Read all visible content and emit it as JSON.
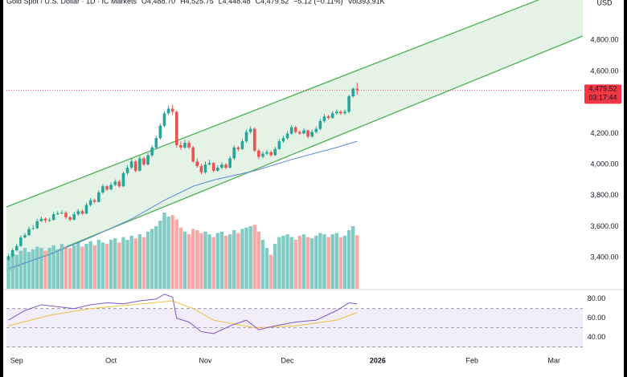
{
  "chart_data": {
    "type": "candlestick",
    "header": [
      "Gold Spot / U.S. Dollar · 1D · IC Markets",
      "O4,488.70",
      "H4,525.75",
      "L4,448.48",
      "C4,479.52",
      "−5.12 (−0.11%)",
      "Vol393.91K"
    ],
    "currency": "USD",
    "up_color": "#26a69a",
    "down_color": "#ef5350",
    "volume_up_color": "#80cbc4",
    "volume_down_color": "#f7a9a7",
    "open": [
      3390,
      3410,
      3448,
      3476,
      3530,
      3545,
      3585,
      3590,
      3635,
      3650,
      3640,
      3643,
      3680,
      3686,
      3690,
      3660,
      3645,
      3680,
      3700,
      3685,
      3740,
      3770,
      3760,
      3820,
      3860,
      3840,
      3870,
      3890,
      3860,
      3945,
      3980,
      4020,
      3960,
      4040,
      4000,
      4060,
      4110,
      4170,
      4250,
      4330,
      4360,
      4340,
      4125,
      4110,
      4140,
      4110,
      4020,
      3990,
      3950,
      4000,
      4010,
      3960,
      3980,
      4000,
      3980,
      4040,
      4110,
      4100,
      4150,
      4210,
      4230,
      4090,
      4050,
      4070,
      4080,
      4060,
      4100,
      4150,
      4170,
      4200,
      4240,
      4210,
      4200,
      4220,
      4180,
      4210,
      4230,
      4280,
      4310,
      4300,
      4330,
      4340,
      4330,
      4340,
      4440,
      4488.7
    ],
    "high": [
      3425,
      3460,
      3490,
      3545,
      3560,
      3600,
      3610,
      3650,
      3665,
      3660,
      3658,
      3695,
      3700,
      3705,
      3700,
      3668,
      3695,
      3715,
      3710,
      3755,
      3785,
      3780,
      3835,
      3875,
      3870,
      3885,
      3905,
      3900,
      3955,
      3995,
      4040,
      4030,
      4055,
      4050,
      4075,
      4125,
      4185,
      4265,
      4345,
      4380,
      4385,
      4350,
      4150,
      4160,
      4155,
      4120,
      4040,
      4005,
      4020,
      4030,
      4015,
      3995,
      4015,
      4010,
      4055,
      4125,
      4120,
      4165,
      4225,
      4245,
      4240,
      4100,
      4085,
      4095,
      4090,
      4115,
      4165,
      4185,
      4215,
      4255,
      4250,
      4220,
      4235,
      4225,
      4225,
      4245,
      4295,
      4325,
      4320,
      4345,
      4355,
      4350,
      4355,
      4450,
      4495,
      4525.75
    ],
    "low": [
      3380,
      3400,
      3440,
      3470,
      3525,
      3540,
      3580,
      3585,
      3630,
      3625,
      3630,
      3640,
      3675,
      3680,
      3650,
      3635,
      3640,
      3670,
      3675,
      3680,
      3730,
      3750,
      3755,
      3810,
      3830,
      3835,
      3860,
      3850,
      3855,
      3935,
      3970,
      3950,
      3955,
      3990,
      3995,
      4050,
      4100,
      4160,
      4240,
      4320,
      4320,
      4110,
      4095,
      4100,
      4100,
      4010,
      3980,
      3935,
      3940,
      3995,
      3950,
      3955,
      3970,
      3970,
      3975,
      4030,
      4085,
      4095,
      4140,
      4200,
      4080,
      4035,
      4040,
      4060,
      4050,
      4055,
      4095,
      4140,
      4160,
      4190,
      4200,
      4190,
      4195,
      4170,
      4175,
      4200,
      4220,
      4270,
      4290,
      4295,
      4320,
      4320,
      4320,
      4330,
      4430,
      4448.48
    ],
    "close": [
      3410,
      3448,
      3476,
      3530,
      3545,
      3585,
      3590,
      3635,
      3650,
      3640,
      3643,
      3680,
      3686,
      3690,
      3660,
      3645,
      3680,
      3700,
      3685,
      3740,
      3770,
      3760,
      3820,
      3860,
      3840,
      3870,
      3890,
      3860,
      3945,
      3980,
      4020,
      3960,
      4040,
      4000,
      4060,
      4110,
      4170,
      4250,
      4330,
      4360,
      4340,
      4125,
      4110,
      4140,
      4110,
      4020,
      3990,
      3950,
      4000,
      4010,
      3960,
      3980,
      4000,
      3980,
      4040,
      4110,
      4100,
      4150,
      4210,
      4230,
      4090,
      4050,
      4070,
      4080,
      4060,
      4100,
      4150,
      4170,
      4200,
      4240,
      4210,
      4200,
      4220,
      4180,
      4210,
      4230,
      4280,
      4310,
      4300,
      4330,
      4340,
      4330,
      4340,
      4440,
      4488.7,
      4479.52
    ],
    "volume": [
      230,
      260,
      250,
      280,
      300,
      270,
      290,
      310,
      300,
      280,
      300,
      320,
      290,
      330,
      310,
      300,
      320,
      340,
      310,
      330,
      350,
      320,
      360,
      340,
      330,
      360,
      370,
      340,
      380,
      360,
      390,
      370,
      400,
      380,
      420,
      440,
      460,
      500,
      560,
      530,
      540,
      510,
      450,
      420,
      400,
      440,
      430,
      410,
      420,
      400,
      380,
      410,
      420,
      390,
      400,
      430,
      410,
      440,
      450,
      460,
      470,
      420,
      360,
      300,
      250,
      330,
      380,
      390,
      400,
      380,
      360,
      390,
      400,
      380,
      370,
      390,
      410,
      400,
      380,
      400,
      410,
      380,
      390,
      430,
      460,
      393.91
    ],
    "ma": {
      "color": "#5b8bd6",
      "x": [
        0,
        10,
        20,
        30,
        38,
        45,
        50,
        60,
        70,
        80,
        85
      ],
      "values": [
        3330,
        3420,
        3530,
        3650,
        3770,
        3860,
        3900,
        3960,
        4040,
        4110,
        4150
      ]
    },
    "channel": {
      "color": "#4caf50",
      "x": [
        -0.5,
        140
      ],
      "upper": [
        3727,
        5172
      ],
      "lower": [
        3314,
        4828
      ]
    },
    "price_label": {
      "value": 4479.52,
      "label": "4,479.52",
      "countdown": "03:17:44",
      "color": "#f23645"
    },
    "xlim": [
      -0.5,
      140
    ],
    "xticks": [
      {
        "value": 2,
        "label": "Sep"
      },
      {
        "value": 25,
        "label": "Oct"
      },
      {
        "value": 48,
        "label": "Nov"
      },
      {
        "value": 68,
        "label": "Dec"
      },
      {
        "value": 90,
        "label": "2026"
      },
      {
        "value": 113,
        "label": "Feb"
      },
      {
        "value": 133,
        "label": "Mar"
      }
    ],
    "ylim": [
      3200,
      5060
    ],
    "yticks": [
      {
        "value": 3400,
        "label": "3,400.00"
      },
      {
        "value": 3600,
        "label": "3,600.00"
      },
      {
        "value": 3800,
        "label": "3,800.00"
      },
      {
        "value": 4000,
        "label": "4,000.00"
      },
      {
        "value": 4200,
        "label": "4,200.00"
      },
      {
        "value": 4600,
        "label": "4,600.00"
      },
      {
        "value": 4800,
        "label": "4,800.00"
      }
    ],
    "rsi": {
      "color": "#7e57c2",
      "ma_color": "#f0c040",
      "x": [
        0,
        4,
        8,
        12,
        16,
        20,
        24,
        28,
        32,
        36,
        38,
        40,
        41,
        44,
        47,
        50,
        54,
        58,
        61,
        65,
        70,
        75,
        80,
        83,
        85
      ],
      "values": [
        58,
        68,
        74,
        72,
        70,
        74,
        76,
        75,
        78,
        80,
        85,
        82,
        60,
        56,
        46,
        44,
        52,
        58,
        48,
        52,
        56,
        58,
        68,
        76,
        75
      ],
      "ma_x": [
        0,
        10,
        20,
        30,
        40,
        45,
        50,
        60,
        70,
        80,
        85
      ],
      "ma_values": [
        52,
        63,
        70,
        74,
        78,
        70,
        58,
        50,
        52,
        58,
        66
      ],
      "levels": [
        70,
        50,
        30
      ],
      "ylim": [
        28,
        89
      ],
      "yticks": [
        {
          "value": 80,
          "label": "80.00"
        },
        {
          "value": 60,
          "label": "60.00"
        },
        {
          "value": 40,
          "label": "40.00"
        }
      ]
    }
  }
}
